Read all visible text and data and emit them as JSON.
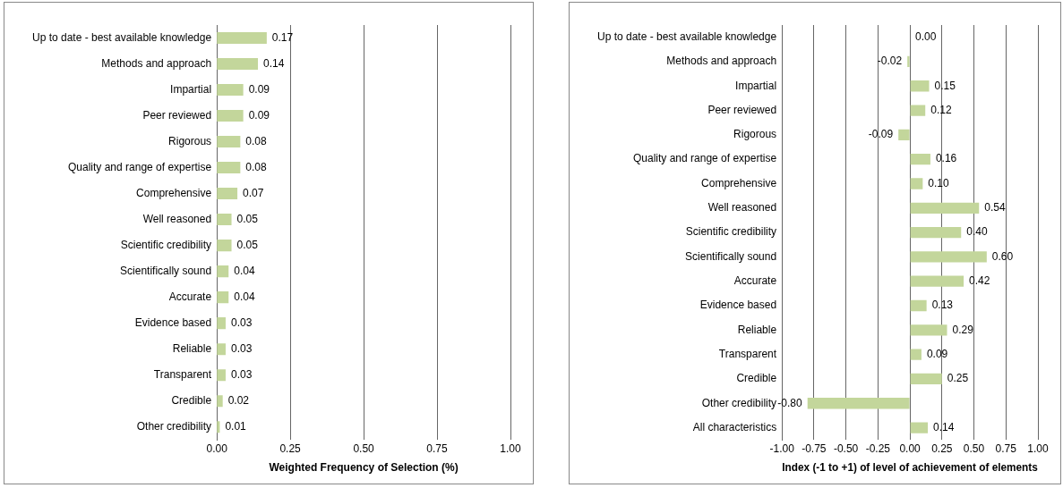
{
  "chart_data": [
    {
      "type": "bar",
      "orientation": "horizontal",
      "xlabel": "Weighted Frequency of Selection (%)",
      "categories": [
        "Up to date - best available knowledge",
        "Methods and approach",
        "Impartial",
        "Peer reviewed",
        "Rigorous",
        "Quality and range of expertise",
        "Comprehensive",
        "Well reasoned",
        "Scientific credibility",
        "Scientifically sound",
        "Accurate",
        "Evidence based",
        "Reliable",
        "Transparent",
        "Credible",
        "Other credibility"
      ],
      "values": [
        0.17,
        0.14,
        0.09,
        0.09,
        0.08,
        0.08,
        0.07,
        0.05,
        0.05,
        0.04,
        0.04,
        0.03,
        0.03,
        0.03,
        0.02,
        0.01
      ],
      "value_labels": [
        "0.17",
        "0.14",
        "0.09",
        "0.09",
        "0.08",
        "0.08",
        "0.07",
        "0.05",
        "0.05",
        "0.04",
        "0.04",
        "0.03",
        "0.03",
        "0.03",
        "0.02",
        "0.01"
      ],
      "color": "#c3d69b",
      "xlim": [
        0,
        1
      ],
      "xticks": [
        {
          "value": 0,
          "label": "0.00"
        },
        {
          "value": 0.25,
          "label": "0.25"
        },
        {
          "value": 0.5,
          "label": "0.50"
        },
        {
          "value": 0.75,
          "label": "0.75"
        },
        {
          "value": 1,
          "label": "1.00"
        }
      ],
      "grid": "x"
    },
    {
      "type": "bar",
      "orientation": "horizontal",
      "xlabel": "Index (-1 to +1) of level of achievement of elements",
      "categories": [
        "Up to date - best available knowledge",
        "Methods and approach",
        "Impartial",
        "Peer reviewed",
        "Rigorous",
        "Quality and range of expertise",
        "Comprehensive",
        "Well reasoned",
        "Scientific credibility",
        "Scientifically sound",
        "Accurate",
        "Evidence based",
        "Reliable",
        "Transparent",
        "Credible",
        "Other credibility",
        "All characteristics"
      ],
      "values": [
        0,
        -0.02,
        0.15,
        0.12,
        -0.09,
        0.16,
        0.1,
        0.54,
        0.4,
        0.6,
        0.42,
        0.13,
        0.29,
        0.09,
        0.25,
        -0.8,
        0.14
      ],
      "value_labels": [
        "0.00",
        "-0.02",
        "0.15",
        "0.12",
        "-0.09",
        "0.16",
        "0.10",
        "0.54",
        "0.40",
        "0.60",
        "0.42",
        "0.13",
        "0.29",
        "0.09",
        "0.25",
        "-0.80",
        "0.14"
      ],
      "color": "#c3d69b",
      "xlim": [
        -1,
        1
      ],
      "xticks": [
        {
          "value": -1,
          "label": "-1.00"
        },
        {
          "value": -0.75,
          "label": "-0.75"
        },
        {
          "value": -0.5,
          "label": "-0.50"
        },
        {
          "value": -0.25,
          "label": "-0.25"
        },
        {
          "value": 0,
          "label": "0.00"
        },
        {
          "value": 0.25,
          "label": "0.25"
        },
        {
          "value": 0.5,
          "label": "0.50"
        },
        {
          "value": 0.75,
          "label": "0.75"
        },
        {
          "value": 1,
          "label": "1.00"
        }
      ],
      "grid": "x"
    }
  ]
}
